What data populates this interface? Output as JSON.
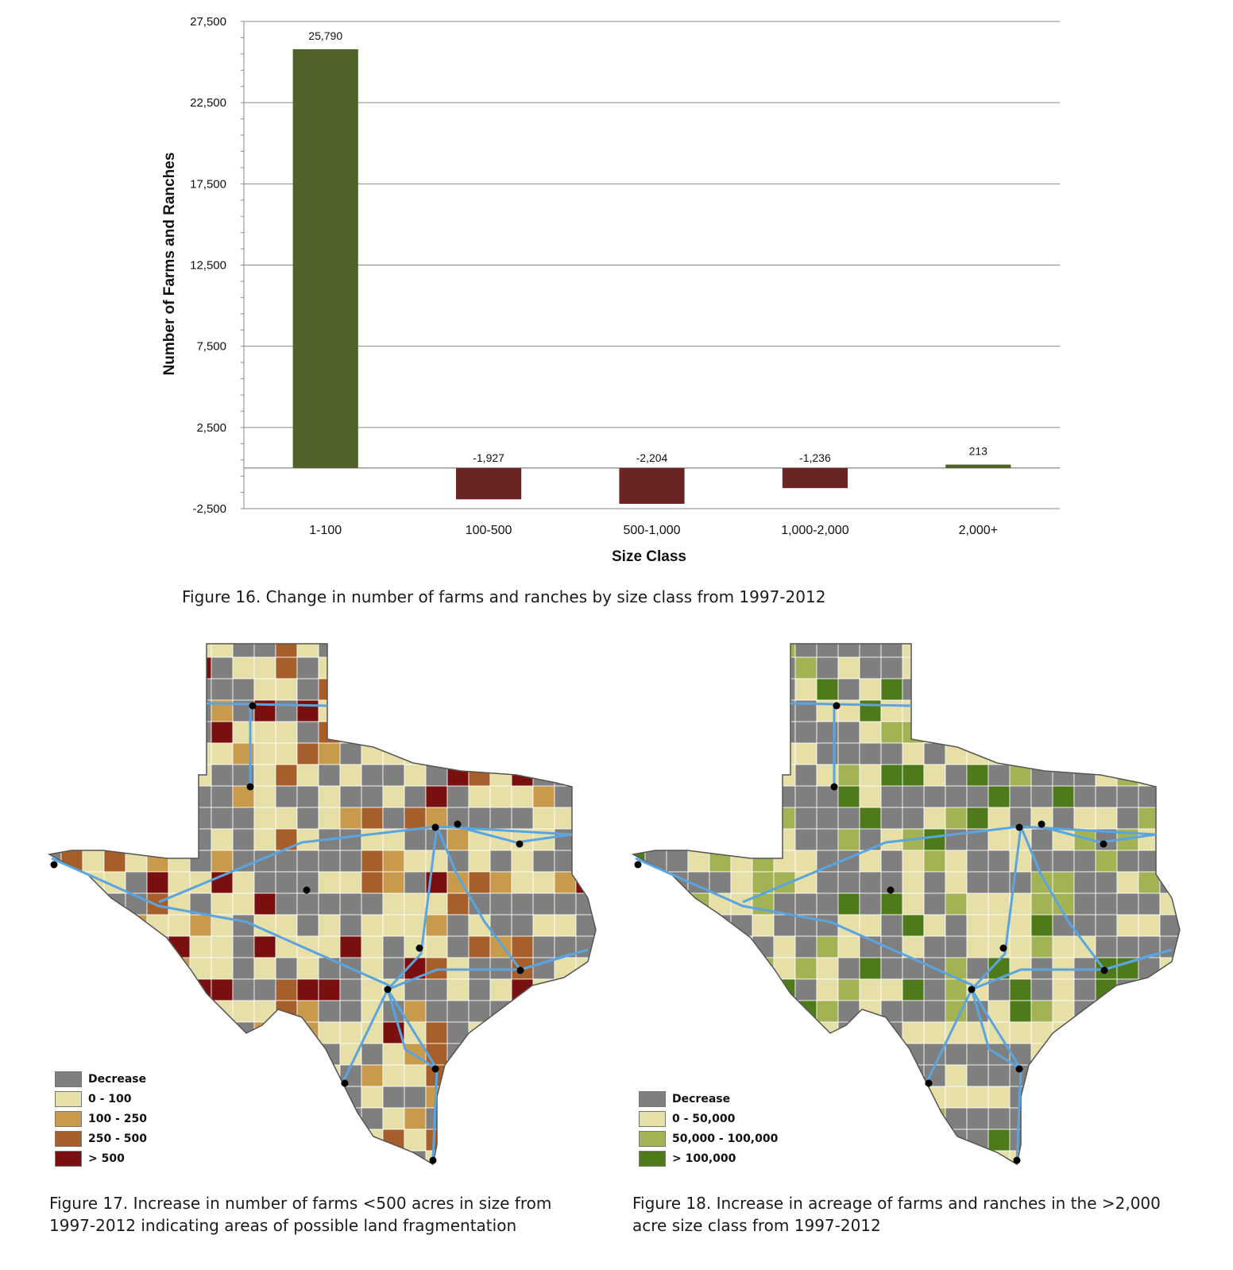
{
  "chart_data": {
    "type": "bar",
    "categories": [
      "1-100",
      "100-500",
      "500-1,000",
      "1,000-2,000",
      "2,000+"
    ],
    "values": [
      25790,
      -1927,
      -2204,
      -1236,
      213
    ],
    "data_labels": [
      "25,790",
      "-1,927",
      "-2,204",
      "-1,236",
      "213"
    ],
    "xlabel": "Size Class",
    "ylabel": "Number of Farms and Ranches",
    "ylim": [
      -2500,
      27500
    ],
    "yticks": [
      -2500,
      2500,
      7500,
      12500,
      17500,
      22500,
      27500
    ],
    "ytick_labels": [
      "-2,500",
      "2,500",
      "7,500",
      "12,500",
      "17,500",
      "22,500",
      "27,500"
    ],
    "grid": true,
    "colors": {
      "positive": "#4e6229",
      "negative": "#6b2424"
    }
  },
  "captions": {
    "fig16": "Figure 16. Change in number of farms and ranches by size class from 1997-2012",
    "fig17_line1": "Figure 17. Increase in number of farms <500 acres in size from",
    "fig17_line2": "1997-2012 indicating areas of possible land fragmentation",
    "fig18_line1": "Figure 18. Increase in acreage of farms and ranches in the >2,000",
    "fig18_line2": "acre size class from 1997-2012"
  },
  "map17": {
    "legend": [
      {
        "label": "Decrease",
        "color": "#7f7f7f"
      },
      {
        "label": "0 - 100",
        "color": "#e6e0a8"
      },
      {
        "label": "100 - 250",
        "color": "#c79a4c"
      },
      {
        "label": "250 - 500",
        "color": "#a65f2a"
      },
      {
        "label": "> 500",
        "color": "#7a0f0f"
      }
    ]
  },
  "map18": {
    "legend": [
      {
        "label": "Decrease",
        "color": "#7f7f7f"
      },
      {
        "label": "0 - 50,000",
        "color": "#e6e0a8"
      },
      {
        "label": "50,000 - 100,000",
        "color": "#a3b252"
      },
      {
        "label": "> 100,000",
        "color": "#4f7a1a"
      }
    ]
  }
}
